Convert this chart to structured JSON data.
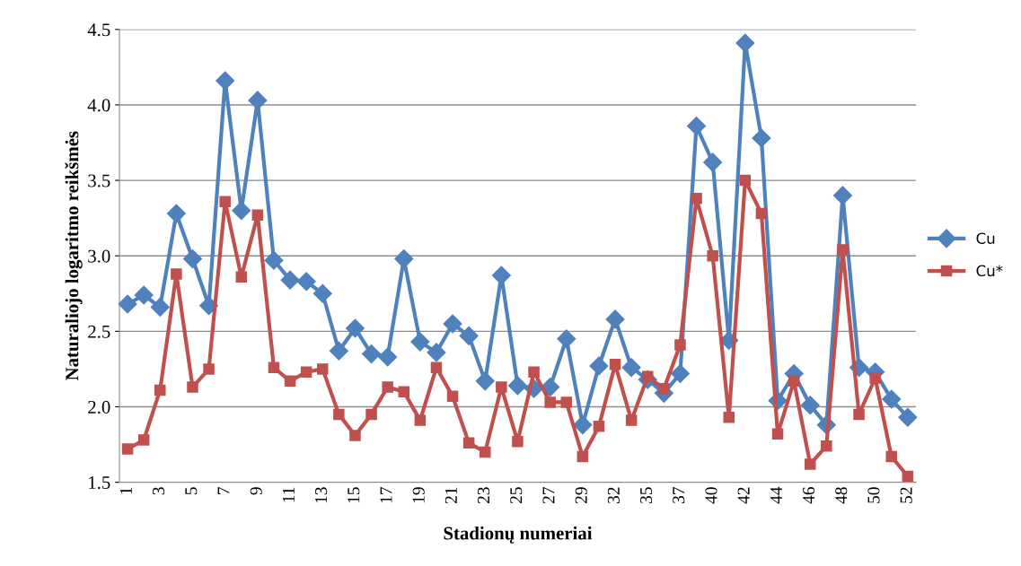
{
  "chart_data": {
    "type": "line",
    "xlabel": "Stadionų numeriai",
    "ylabel": "Naturaliojo logaritmo reikšmės",
    "categories": [
      "1",
      null,
      "3",
      null,
      "5",
      null,
      "7",
      null,
      "9",
      null,
      "11",
      null,
      "13",
      null,
      "15",
      null,
      "17",
      null,
      "19",
      null,
      "21",
      null,
      "23",
      null,
      "25",
      null,
      "27",
      null,
      "29",
      null,
      "32",
      null,
      "35",
      null,
      "37",
      null,
      "40",
      null,
      "42",
      null,
      "44",
      null,
      "46",
      null,
      "48",
      null,
      "50",
      null,
      "52"
    ],
    "series": [
      {
        "name": "Cu",
        "color": "#4f81bd",
        "marker": "diamond",
        "values": [
          2.68,
          2.74,
          2.66,
          3.28,
          2.98,
          2.67,
          4.16,
          3.3,
          4.03,
          2.97,
          2.84,
          2.83,
          2.75,
          2.37,
          2.52,
          2.35,
          2.33,
          2.98,
          2.43,
          2.36,
          2.55,
          2.47,
          2.17,
          2.87,
          2.14,
          2.12,
          2.13,
          2.45,
          1.88,
          2.27,
          2.58,
          2.26,
          2.18,
          2.09,
          2.22,
          3.86,
          3.62,
          2.44,
          4.41,
          3.78,
          2.04,
          2.22,
          2.01,
          1.88,
          3.4,
          2.26,
          2.23,
          2.05,
          1.93
        ]
      },
      {
        "name": "Cu*",
        "color": "#c0504d",
        "marker": "square",
        "values": [
          1.72,
          1.78,
          2.11,
          2.88,
          2.13,
          2.25,
          3.36,
          2.86,
          3.27,
          2.26,
          2.17,
          2.23,
          2.25,
          1.95,
          1.81,
          1.95,
          2.13,
          2.1,
          1.91,
          2.26,
          2.07,
          1.76,
          1.7,
          2.13,
          1.77,
          2.23,
          2.03,
          2.03,
          1.67,
          1.87,
          2.28,
          1.91,
          2.2,
          2.12,
          2.41,
          3.38,
          3.0,
          1.93,
          3.5,
          3.28,
          1.82,
          2.17,
          1.62,
          1.74,
          3.04,
          1.95,
          2.19,
          1.67,
          1.54
        ]
      }
    ],
    "ylim": [
      1.5,
      4.5
    ],
    "yticks": [
      {
        "value": 1.5,
        "label": "1.5"
      },
      {
        "value": 2.0,
        "label": "2.0"
      },
      {
        "value": 2.5,
        "label": "2.5"
      },
      {
        "value": 3.0,
        "label": "3.0"
      },
      {
        "value": 3.5,
        "label": "3.5"
      },
      {
        "value": 4.0,
        "label": "4.0"
      },
      {
        "value": 4.5,
        "label": "4.5"
      }
    ],
    "grid": "y",
    "legend": "right",
    "line_style": "solid"
  }
}
